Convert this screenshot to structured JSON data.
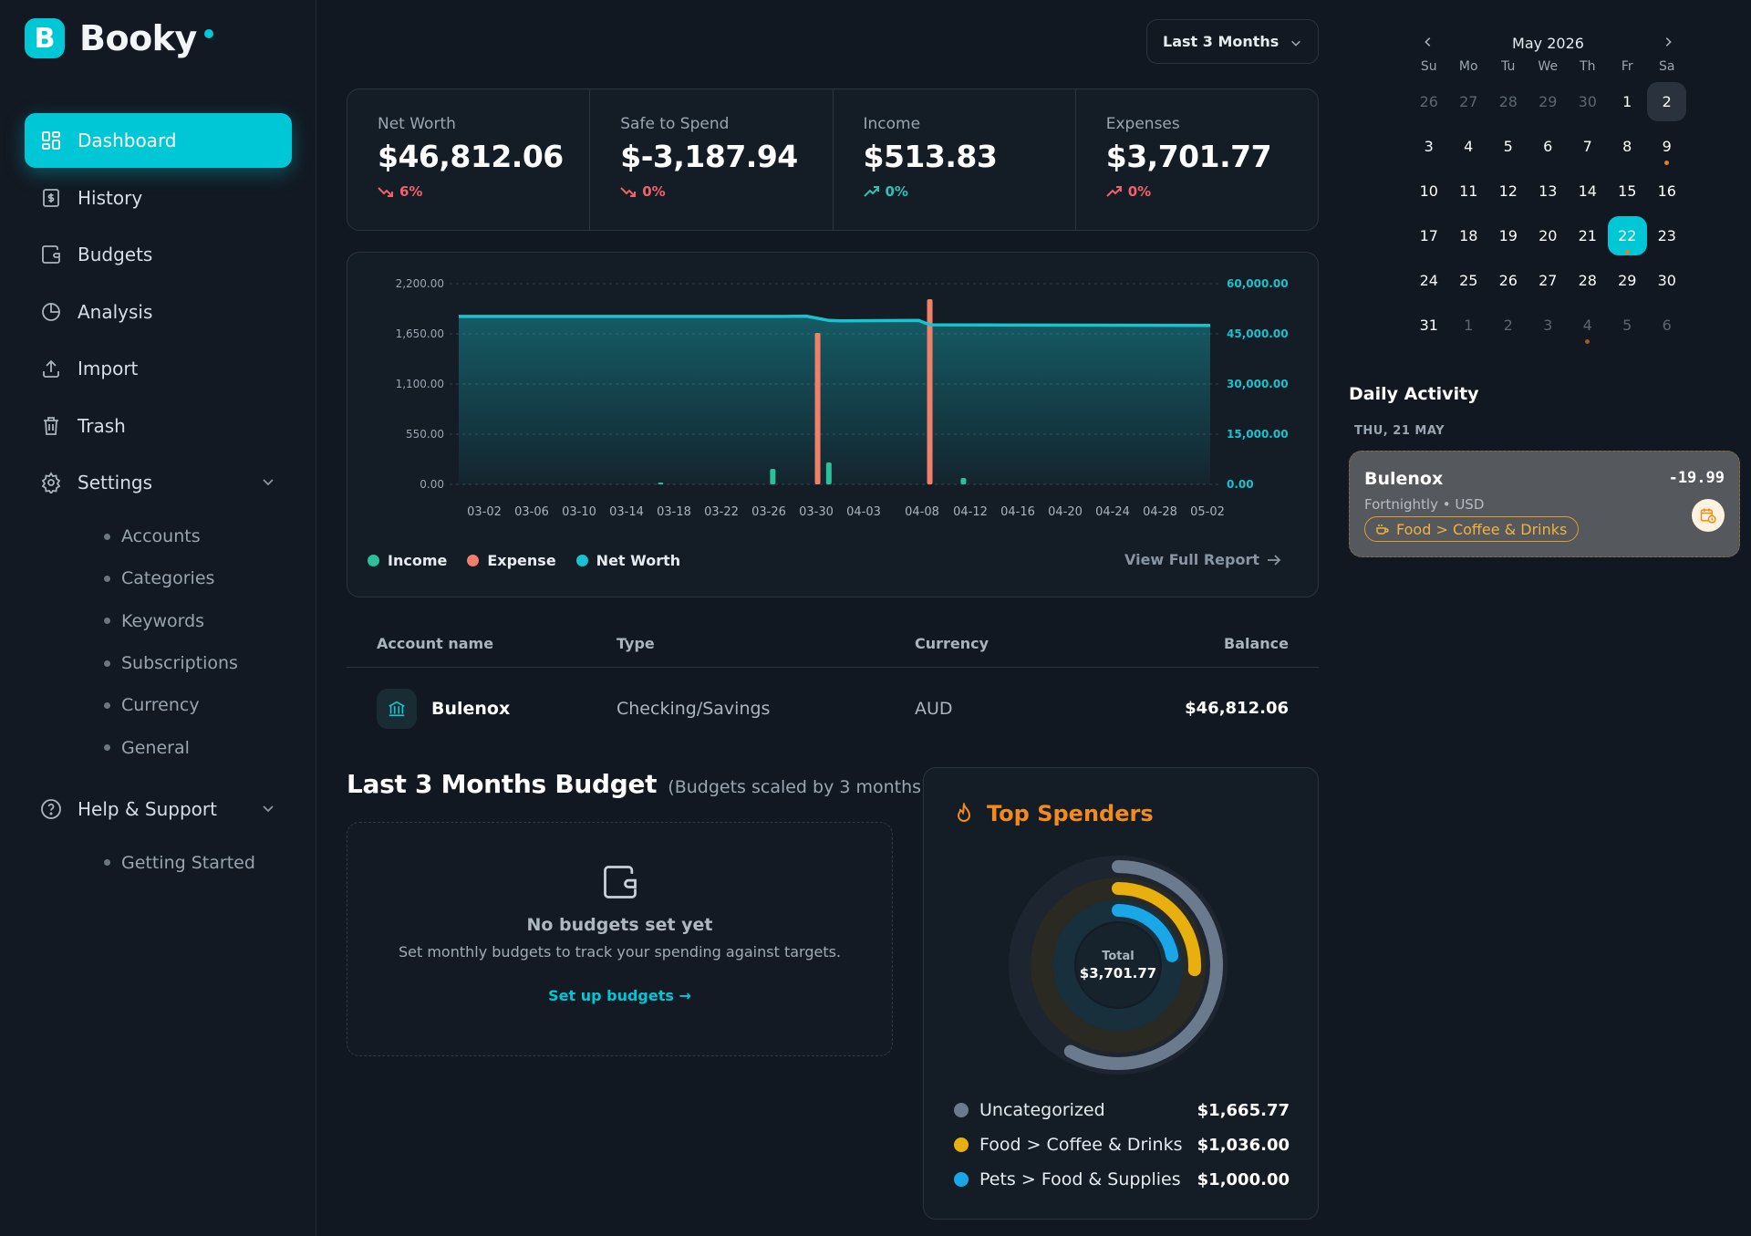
{
  "brand": {
    "initial": "B",
    "name": "Booky"
  },
  "nav": {
    "items": [
      {
        "label": "Dashboard",
        "icon": "dashboard-icon"
      },
      {
        "label": "History",
        "icon": "receipt-icon"
      },
      {
        "label": "Budgets",
        "icon": "wallet-icon"
      },
      {
        "label": "Analysis",
        "icon": "pie-chart-icon"
      },
      {
        "label": "Import",
        "icon": "upload-icon"
      },
      {
        "label": "Trash",
        "icon": "trash-icon"
      }
    ],
    "settings": {
      "label": "Settings",
      "sub": [
        "Accounts",
        "Categories",
        "Keywords",
        "Subscriptions",
        "Currency",
        "General"
      ]
    },
    "help": {
      "label": "Help & Support",
      "sub": [
        "Getting Started"
      ]
    }
  },
  "range": {
    "selected": "Last 3 Months"
  },
  "stats": [
    {
      "label": "Net Worth",
      "value": "$46,812.06",
      "delta": "6%",
      "trend": "down"
    },
    {
      "label": "Safe to Spend",
      "value": "$-3,187.94",
      "delta": "0%",
      "trend": "down"
    },
    {
      "label": "Income",
      "value": "$513.83",
      "delta": "0%",
      "trend": "up"
    },
    {
      "label": "Expenses",
      "value": "$3,701.77",
      "delta": "0%",
      "trend": "up-red"
    }
  ],
  "colors": {
    "accent": "#00c7d6",
    "income": "#2bbf9a",
    "expense": "#f0806a",
    "networth": "#17c3cc",
    "down": "#f0616b",
    "up": "#2ac3b6"
  },
  "chart_data": {
    "type": "bar+area",
    "left_axis": {
      "ticks": [
        "2,200.00",
        "1,650.00",
        "1,100.00",
        "550.00",
        "0.00"
      ],
      "range": [
        0,
        2200
      ]
    },
    "right_axis": {
      "ticks": [
        "60,000.00",
        "45,000.00",
        "30,000.00",
        "15,000.00",
        "0.00"
      ],
      "range": [
        0,
        60000
      ]
    },
    "x_ticks": [
      "03-02",
      "03-06",
      "03-10",
      "03-14",
      "03-18",
      "03-22",
      "03-26",
      "03-30",
      "04-03",
      "04-08",
      "04-12",
      "04-16",
      "04-20",
      "04-24",
      "04-28",
      "05-02"
    ],
    "x_range": [
      "2026-02-27",
      "2026-05-05"
    ],
    "series": [
      {
        "name": "Income",
        "color": "#2bbf9a",
        "points": [
          [
            "2026-03-17",
            20
          ],
          [
            "2026-03-27",
            170
          ],
          [
            "2026-04-01",
            240
          ],
          [
            "2026-04-13",
            70
          ]
        ]
      },
      {
        "name": "Expense",
        "color": "#f0806a",
        "points": [
          [
            "2026-03-31",
            1660
          ],
          [
            "2026-04-10",
            2030
          ]
        ]
      },
      {
        "name": "Net Worth",
        "color": "#17c3cc",
        "area": true,
        "points": [
          [
            "2026-02-27",
            50200
          ],
          [
            "2026-03-28",
            50200
          ],
          [
            "2026-03-30",
            50300
          ],
          [
            "2026-04-01",
            49000
          ],
          [
            "2026-04-02",
            48900
          ],
          [
            "2026-04-09",
            49000
          ],
          [
            "2026-04-10",
            47700
          ],
          [
            "2026-05-05",
            47500
          ]
        ]
      }
    ]
  },
  "chart_legend": [
    "Income",
    "Expense",
    "Net Worth"
  ],
  "report_link": "View Full Report",
  "accounts": {
    "headers": {
      "name": "Account name",
      "type": "Type",
      "currency": "Currency",
      "balance": "Balance"
    },
    "rows": [
      {
        "name": "Bulenox",
        "type": "Checking/Savings",
        "currency": "AUD",
        "balance": "$46,812.06"
      }
    ]
  },
  "budget": {
    "title": "Last 3 Months Budget",
    "subtitle": "(Budgets scaled by 3 months)",
    "empty_title": "No budgets set yet",
    "empty_text": "Set monthly budgets to track your spending against targets.",
    "cta": "Set up budgets →"
  },
  "spenders": {
    "title": "Top Spenders",
    "total_label": "Total",
    "total": "$3,701.77",
    "items": [
      {
        "name": "Uncategorized",
        "amount": "$1,665.77",
        "value": 1665.77,
        "color": "#6b7a8c"
      },
      {
        "name": "Food > Coffee & Drinks",
        "amount": "$1,036.00",
        "value": 1036.0,
        "color": "#e8b00f"
      },
      {
        "name": "Pets > Food & Supplies",
        "amount": "$1,000.00",
        "value": 1000.0,
        "color": "#1aa7e8"
      }
    ]
  },
  "calendar": {
    "month": "May 2026",
    "dow": [
      "Su",
      "Mo",
      "Tu",
      "We",
      "Th",
      "Fr",
      "Sa"
    ],
    "days": [
      {
        "d": "26",
        "dim": true
      },
      {
        "d": "27",
        "dim": true
      },
      {
        "d": "28",
        "dim": true
      },
      {
        "d": "29",
        "dim": true
      },
      {
        "d": "30",
        "dim": true
      },
      {
        "d": "1"
      },
      {
        "d": "2",
        "today": true
      },
      {
        "d": "3"
      },
      {
        "d": "4"
      },
      {
        "d": "5"
      },
      {
        "d": "6"
      },
      {
        "d": "7"
      },
      {
        "d": "8"
      },
      {
        "d": "9",
        "mark": true
      },
      {
        "d": "10"
      },
      {
        "d": "11"
      },
      {
        "d": "12"
      },
      {
        "d": "13"
      },
      {
        "d": "14"
      },
      {
        "d": "15"
      },
      {
        "d": "16"
      },
      {
        "d": "17"
      },
      {
        "d": "18"
      },
      {
        "d": "19"
      },
      {
        "d": "20"
      },
      {
        "d": "21"
      },
      {
        "d": "22",
        "sel": true,
        "mark": true
      },
      {
        "d": "23"
      },
      {
        "d": "24"
      },
      {
        "d": "25"
      },
      {
        "d": "26"
      },
      {
        "d": "27"
      },
      {
        "d": "28"
      },
      {
        "d": "29"
      },
      {
        "d": "30"
      },
      {
        "d": "31"
      },
      {
        "d": "1",
        "dim": true
      },
      {
        "d": "2",
        "dim": true
      },
      {
        "d": "3",
        "dim": true
      },
      {
        "d": "4",
        "dim": true,
        "mark": true
      },
      {
        "d": "5",
        "dim": true
      },
      {
        "d": "6",
        "dim": true
      }
    ]
  },
  "daily": {
    "title": "Daily Activity",
    "date": "THU, 21 MAY",
    "item": {
      "name": "Bulenox",
      "sub": "Fortnightly • USD",
      "amount": "-19.99",
      "tag": "Food > Coffee & Drinks"
    }
  }
}
